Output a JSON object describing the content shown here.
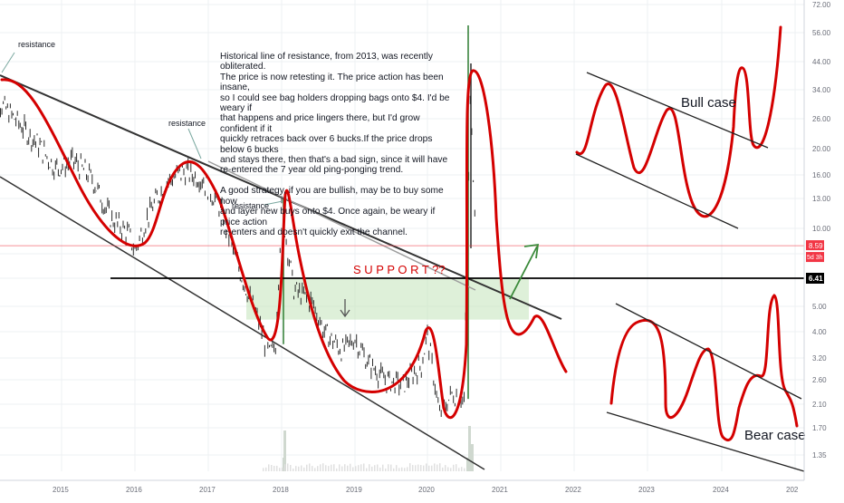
{
  "chart_data": {
    "type": "line",
    "scale": "log",
    "x_axis": {
      "ticks": [
        "2015",
        "2016",
        "2017",
        "2018",
        "2019",
        "2020",
        "2021",
        "2022",
        "2023",
        "2024",
        "202"
      ]
    },
    "y_axis": {
      "ticks": [
        72.0,
        56.0,
        44.0,
        34.0,
        26.0,
        20.0,
        16.0,
        13.0,
        10.0,
        8.0,
        6.41,
        5.0,
        4.0,
        3.2,
        2.6,
        2.1,
        1.7,
        1.35
      ],
      "tick_labels": [
        "72.00",
        "56.00",
        "44.00",
        "34.00",
        "26.00",
        "20.00",
        "16.00",
        "13.00",
        "10.00",
        "8.00",
        "6.41",
        "5.00",
        "4.00",
        "3.20",
        "2.60",
        "2.10",
        "1.70",
        "1.35"
      ]
    },
    "price_series": [
      [
        "2014-01",
        38
      ],
      [
        "2014-03",
        30
      ],
      [
        "2014-06",
        25
      ],
      [
        "2014-09",
        21
      ],
      [
        "2014-12",
        17
      ],
      [
        "2015-03",
        18
      ],
      [
        "2015-06",
        15.5
      ],
      [
        "2015-09",
        11
      ],
      [
        "2015-12",
        9.5
      ],
      [
        "2016-01",
        8.2
      ],
      [
        "2016-03",
        11
      ],
      [
        "2016-06",
        15
      ],
      [
        "2016-09",
        16.5
      ],
      [
        "2016-12",
        15.5
      ],
      [
        "2017-03",
        12
      ],
      [
        "2017-06",
        7
      ],
      [
        "2017-09",
        4.5
      ],
      [
        "2017-11",
        3.3
      ],
      [
        "2017-12",
        3.6
      ],
      [
        "2018-01",
        12
      ],
      [
        "2018-03",
        5.8
      ],
      [
        "2018-06",
        5.2
      ],
      [
        "2018-08",
        4.0
      ],
      [
        "2018-11",
        3.4
      ],
      [
        "2019-01",
        3.8
      ],
      [
        "2019-03",
        3.1
      ],
      [
        "2019-06",
        2.6
      ],
      [
        "2019-09",
        2.5
      ],
      [
        "2019-12",
        3.0
      ],
      [
        "2020-01",
        3.9
      ],
      [
        "2020-03",
        1.9
      ],
      [
        "2020-05",
        2.3
      ],
      [
        "2020-07",
        2.2
      ],
      [
        "2020-08",
        30
      ],
      [
        "2020-09",
        9
      ]
    ],
    "current_price": 8.59,
    "support_level": 6.41,
    "labels": {
      "price_badge": "8.59",
      "countdown_badge": "5d 3h",
      "support_badge": "6.41",
      "support": "S U P P O R T ??",
      "resistance": "resistance",
      "bull_case": "Bull case",
      "bear_case": "Bear case"
    },
    "annotation": [
      "Historical line of resistance, from 2013, was recently obliterated.",
      "The price is now retesting it. The price action has been insane,",
      "so I could see bag holders dropping bags onto $4. I'd be weary if",
      "that happens and price lingers there, but I'd grow confident if it",
      "quickly retraces back over 6 bucks.If the price drops below 6 bucks",
      "and stays there, then that's a bad sign, since it will have",
      "re-entered the 7 year old ping-ponging trend.",
      "",
      "A good strategy, if you are bullish, may be to buy some now",
      "and layer new buys onto $4. Once again, be weary if price action",
      "re-enters and doesn't quickly exit the channel."
    ],
    "colors": {
      "candle": "#2b2b2b",
      "annotation_red": "#d40000",
      "support_zone": "#c8e6c0",
      "arrow_green": "#3a8a3a",
      "price_line": "#f23645",
      "trendline": "#333333",
      "grid": "#eef0f3"
    },
    "grid": true,
    "legend": "none"
  }
}
